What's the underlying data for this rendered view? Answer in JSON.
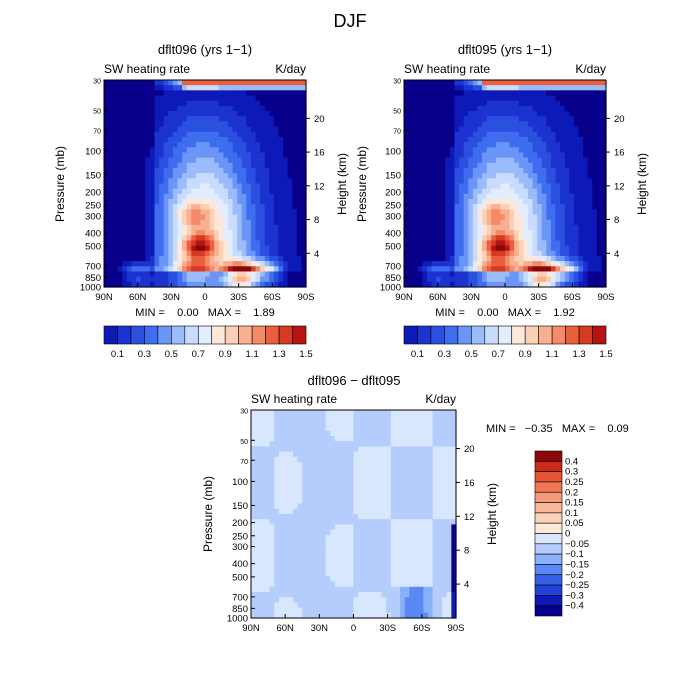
{
  "page": {
    "title": "DJF"
  },
  "colors": {
    "abs_scale": [
      "#08008a",
      "#0d1ab8",
      "#1c33d0",
      "#2b50e0",
      "#3f6df0",
      "#6b95f7",
      "#9bbcfb",
      "#c9dcfd",
      "#e2edfe",
      "#fde8da",
      "#fbd0b6",
      "#f8b090",
      "#f58a68",
      "#ec5f3e",
      "#d63a22",
      "#b51412",
      "#870808"
    ],
    "diff_scale": [
      "#08008a",
      "#0d1ab8",
      "#2040d8",
      "#3660ea",
      "#5a88f4",
      "#8bb0fa",
      "#b5cdfd",
      "#d8e6fe",
      "#fce9da",
      "#fbd3bb",
      "#f8b89a",
      "#f5997a",
      "#f07756",
      "#e55437",
      "#cc2a1a",
      "#8c0808"
    ]
  },
  "chart_data": [
    {
      "type": "heatmap",
      "name": "dflt096 (yrs 1-1)",
      "title": "dflt096 (yrs 1−1)",
      "subtitle": "SW heating rate",
      "units": "K/day",
      "ylabel": "Pressure (mb)",
      "ylabel_right": "Height (km)",
      "xticks": [
        "90N",
        "60N",
        "30N",
        "0",
        "30S",
        "60S",
        "90S"
      ],
      "yticks": [
        "30",
        "50",
        "70",
        "100",
        "150",
        "200",
        "250",
        "300",
        "400",
        "500",
        "700",
        "850",
        "1000"
      ],
      "yticks_right": [
        "20",
        "16",
        "12",
        "8",
        "4"
      ],
      "stats": "MIN =    0.00   MAX =    1.89",
      "colorbar_labels": [
        "0.1",
        "0.3",
        "0.5",
        "0.7",
        "0.9",
        "1.1",
        "1.3",
        "1.5"
      ],
      "colorbar_levels": 15,
      "xlim": [
        90,
        -90
      ],
      "ylim": [
        1000,
        30
      ],
      "grid": false,
      "features": [
        {
          "lat": 10,
          "p": 800,
          "value": 1.0
        },
        {
          "lat": -30,
          "p": 850,
          "value": 1.5
        },
        {
          "lat": -35,
          "p": 860,
          "value": 1.85
        },
        {
          "lat": -55,
          "p": 820,
          "value": 1.3
        },
        {
          "lat": 5,
          "p": 500,
          "value": 1.15
        },
        {
          "lat": 60,
          "p": 850,
          "value": 1.2
        },
        {
          "lat": 10,
          "p": 300,
          "value": 0.6
        },
        {
          "lat": 80,
          "p": 500,
          "value": 0.1
        }
      ]
    },
    {
      "type": "heatmap",
      "name": "dflt095 (yrs 1-1)",
      "title": "dflt095 (yrs 1−1)",
      "subtitle": "SW heating rate",
      "units": "K/day",
      "ylabel": "Pressure (mb)",
      "ylabel_right": "Height (km)",
      "xticks": [
        "90N",
        "60N",
        "30N",
        "0",
        "30S",
        "60S",
        "90S"
      ],
      "yticks": [
        "30",
        "50",
        "70",
        "100",
        "150",
        "200",
        "250",
        "300",
        "400",
        "500",
        "700",
        "850",
        "1000"
      ],
      "yticks_right": [
        "20",
        "16",
        "12",
        "8",
        "4"
      ],
      "stats": "MIN =    0.00   MAX =    1.92",
      "colorbar_labels": [
        "0.1",
        "0.3",
        "0.5",
        "0.7",
        "0.9",
        "1.1",
        "1.3",
        "1.5"
      ],
      "colorbar_levels": 15,
      "xlim": [
        90,
        -90
      ],
      "ylim": [
        1000,
        30
      ],
      "grid": false,
      "features": [
        {
          "lat": 10,
          "p": 800,
          "value": 1.0
        },
        {
          "lat": -30,
          "p": 850,
          "value": 1.55
        },
        {
          "lat": -35,
          "p": 860,
          "value": 1.9
        },
        {
          "lat": -55,
          "p": 820,
          "value": 1.3
        },
        {
          "lat": 5,
          "p": 500,
          "value": 1.15
        },
        {
          "lat": 60,
          "p": 850,
          "value": 1.2
        },
        {
          "lat": 10,
          "p": 300,
          "value": 0.6
        },
        {
          "lat": 80,
          "p": 500,
          "value": 0.1
        }
      ]
    },
    {
      "type": "heatmap",
      "name": "dflt096 - dflt095",
      "title": "dflt096 − dflt095",
      "subtitle": "SW heating rate",
      "units": "K/day",
      "ylabel": "Pressure (mb)",
      "ylabel_right": "Height (km)",
      "xticks": [
        "90N",
        "60N",
        "30N",
        "0",
        "30S",
        "60S",
        "90S"
      ],
      "yticks": [
        "30",
        "50",
        "70",
        "100",
        "150",
        "200",
        "250",
        "300",
        "400",
        "500",
        "700",
        "850",
        "1000"
      ],
      "yticks_right": [
        "20",
        "16",
        "12",
        "8",
        "4"
      ],
      "stats": "MIN =   −0.35   MAX =    0.09",
      "colorbar_labels": [
        "0.4",
        "0.3",
        "0.25",
        "0.2",
        "0.15",
        "0.1",
        "0.05",
        "0",
        "−0.05",
        "−0.1",
        "−0.15",
        "−0.2",
        "−0.25",
        "−0.3",
        "−0.4"
      ],
      "xlim": [
        90,
        -90
      ],
      "ylim": [
        1000,
        30
      ],
      "grid": false,
      "range": [
        -0.35,
        0.09
      ]
    }
  ]
}
